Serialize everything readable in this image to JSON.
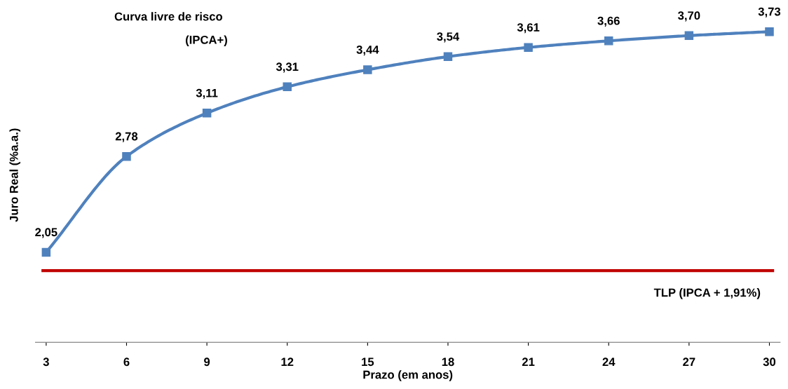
{
  "chart_data": {
    "type": "line",
    "title": "Curva livre de risco",
    "subtitle": "(IPCA+)",
    "xlabel": "Prazo (em anos)",
    "ylabel": "Juro Real (%a.a.)",
    "x": [
      3,
      6,
      9,
      12,
      15,
      18,
      21,
      24,
      27,
      30
    ],
    "series": [
      {
        "color": "#4f81bd",
        "values": [
          2.05,
          2.78,
          3.11,
          3.31,
          3.44,
          3.54,
          3.61,
          3.66,
          3.7,
          3.73
        ],
        "value_labels": [
          "2,05",
          "2,78",
          "3,11",
          "3,31",
          "3,44",
          "3,54",
          "3,61",
          "3,66",
          "3,70",
          "3,73"
        ]
      }
    ],
    "xlim": [
      2.6,
      30.4
    ],
    "xticks": [
      3,
      6,
      9,
      12,
      15,
      18,
      21,
      24,
      27,
      30
    ],
    "marker": "square",
    "line_style": "solid",
    "grid": false,
    "legend": false,
    "tick_labels": "x",
    "ref_lines": [
      {
        "axis": "y",
        "value": 1.91,
        "label": "TLP (IPCA + 1,91%)",
        "color": "#c00000",
        "line_style": "solid"
      }
    ]
  }
}
